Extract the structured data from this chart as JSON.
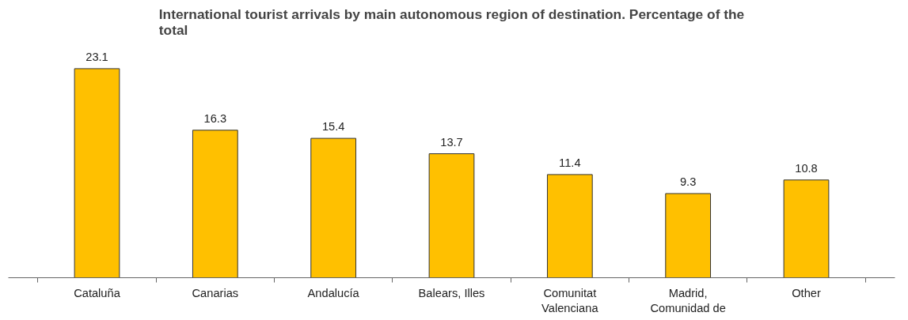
{
  "chart_data": {
    "type": "bar",
    "title": "International tourist arrivals by main autonomous region of destination. Percentage of the total",
    "categories": [
      "Cataluña",
      "Canarias",
      "Andalucía",
      "Balears, Illes",
      "Comunitat Valenciana",
      "Madrid, Comunidad de",
      "Other"
    ],
    "values": [
      23.1,
      16.3,
      15.4,
      13.7,
      11.4,
      9.3,
      10.8
    ],
    "color": "#ffc000",
    "data_labels": true,
    "grid": false
  }
}
